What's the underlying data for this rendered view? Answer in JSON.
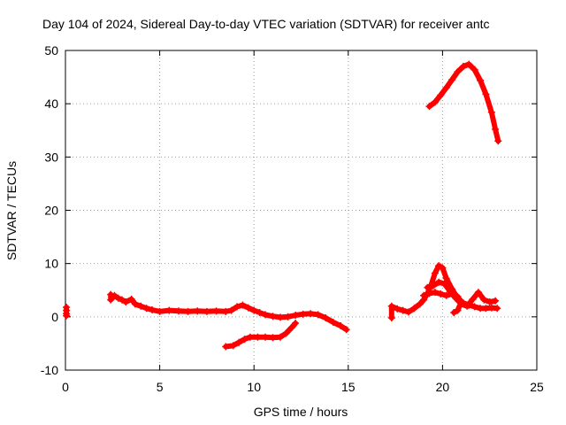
{
  "chart_data": {
    "type": "scatter",
    "title": "Day 104 of 2024, Sidereal Day-to-day VTEC variation (SDTVAR) for receiver antc",
    "xlabel": "GPS time / hours",
    "ylabel": "SDTVAR / TECUs",
    "xlim": [
      0,
      25
    ],
    "ylim": [
      -10,
      50
    ],
    "x_ticks": [
      0,
      5,
      10,
      15,
      20,
      25
    ],
    "y_ticks": [
      -10,
      0,
      10,
      20,
      30,
      40,
      50
    ],
    "x_tick_labels": [
      "0",
      "5",
      "10",
      "15",
      "20",
      "25"
    ],
    "y_tick_labels": [
      "-10",
      "0",
      "10",
      "20",
      "30",
      "40",
      "50"
    ],
    "grid": true,
    "marker": "plus",
    "color": "#ff0000",
    "series": [
      {
        "name": "trace-start",
        "points": [
          [
            0.05,
            1.8
          ],
          [
            0.05,
            1.2
          ],
          [
            0.05,
            0.6
          ],
          [
            0.05,
            0.2
          ]
        ]
      },
      {
        "name": "trace-morning",
        "points": [
          [
            2.4,
            4.2
          ],
          [
            2.4,
            3.2
          ],
          [
            2.6,
            4.0
          ],
          [
            2.8,
            3.5
          ],
          [
            3.0,
            3.2
          ],
          [
            3.2,
            2.8
          ],
          [
            3.5,
            3.3
          ],
          [
            3.7,
            2.4
          ],
          [
            4.0,
            2.0
          ],
          [
            4.3,
            1.6
          ],
          [
            4.6,
            1.3
          ],
          [
            5.0,
            1.0
          ],
          [
            5.5,
            1.2
          ],
          [
            6.0,
            1.1
          ],
          [
            6.5,
            1.0
          ],
          [
            7.0,
            1.1
          ],
          [
            7.5,
            1.0
          ],
          [
            8.0,
            1.1
          ],
          [
            8.5,
            1.0
          ],
          [
            8.8,
            1.2
          ],
          [
            9.1,
            1.9
          ],
          [
            9.4,
            2.2
          ],
          [
            9.7,
            1.7
          ],
          [
            10.0,
            1.2
          ],
          [
            10.3,
            0.8
          ],
          [
            10.6,
            0.4
          ],
          [
            11.0,
            0.1
          ],
          [
            11.4,
            -0.1
          ],
          [
            11.8,
            0.0
          ],
          [
            12.2,
            0.3
          ],
          [
            12.6,
            0.5
          ],
          [
            13.0,
            0.6
          ],
          [
            13.4,
            0.4
          ],
          [
            13.8,
            -0.2
          ],
          [
            14.2,
            -1.0
          ],
          [
            14.6,
            -1.7
          ],
          [
            14.9,
            -2.4
          ]
        ]
      },
      {
        "name": "trace-dip",
        "points": [
          [
            8.5,
            -5.6
          ],
          [
            8.9,
            -5.4
          ],
          [
            9.2,
            -4.8
          ],
          [
            9.5,
            -4.2
          ],
          [
            9.8,
            -3.8
          ],
          [
            10.2,
            -3.8
          ],
          [
            10.6,
            -3.8
          ],
          [
            11.0,
            -3.9
          ],
          [
            11.4,
            -3.8
          ],
          [
            11.7,
            -3.1
          ],
          [
            12.0,
            -2.0
          ],
          [
            12.2,
            -1.2
          ]
        ]
      },
      {
        "name": "trace-afternoon",
        "points": [
          [
            17.3,
            -0.2
          ],
          [
            17.3,
            2.0
          ],
          [
            17.6,
            1.5
          ],
          [
            17.9,
            1.2
          ],
          [
            18.2,
            0.9
          ],
          [
            18.5,
            1.6
          ],
          [
            18.8,
            2.4
          ],
          [
            19.0,
            3.2
          ],
          [
            19.2,
            4.4
          ],
          [
            19.4,
            6.0
          ],
          [
            19.6,
            8.2
          ],
          [
            19.8,
            9.6
          ],
          [
            20.0,
            9.2
          ],
          [
            20.2,
            7.2
          ],
          [
            20.5,
            5.2
          ],
          [
            20.8,
            3.5
          ],
          [
            21.1,
            2.6
          ],
          [
            21.4,
            2.2
          ],
          [
            21.7,
            1.9
          ],
          [
            22.0,
            1.6
          ],
          [
            22.3,
            1.6
          ],
          [
            22.6,
            1.7
          ],
          [
            22.9,
            1.6
          ]
        ]
      },
      {
        "name": "trace-afternoon-2",
        "points": [
          [
            19.2,
            5.5
          ],
          [
            19.5,
            5.8
          ],
          [
            19.8,
            6.5
          ],
          [
            20.1,
            6.2
          ],
          [
            20.4,
            4.8
          ],
          [
            20.7,
            3.5
          ],
          [
            21.0,
            2.4
          ],
          [
            21.3,
            2.0
          ],
          [
            21.6,
            3.3
          ],
          [
            21.9,
            4.6
          ],
          [
            22.2,
            3.2
          ],
          [
            22.5,
            2.8
          ],
          [
            22.8,
            3.0
          ]
        ]
      },
      {
        "name": "trace-afternoon-3",
        "points": [
          [
            19.0,
            4.0
          ],
          [
            19.3,
            4.4
          ],
          [
            19.6,
            4.6
          ],
          [
            19.9,
            4.3
          ],
          [
            20.2,
            4.0
          ],
          [
            20.5,
            4.3
          ],
          [
            20.8,
            3.8
          ],
          [
            21.0,
            2.8
          ],
          [
            20.8,
            1.2
          ],
          [
            20.6,
            0.8
          ]
        ]
      },
      {
        "name": "trace-peak",
        "points": [
          [
            19.3,
            39.5
          ],
          [
            19.6,
            40.3
          ],
          [
            19.9,
            41.6
          ],
          [
            20.2,
            43.0
          ],
          [
            20.5,
            44.5
          ],
          [
            20.8,
            46.0
          ],
          [
            21.1,
            47.0
          ],
          [
            21.4,
            47.4
          ],
          [
            21.7,
            46.4
          ],
          [
            22.0,
            44.4
          ],
          [
            22.3,
            41.8
          ],
          [
            22.6,
            38.4
          ],
          [
            22.8,
            35.2
          ],
          [
            22.95,
            33.0
          ]
        ]
      }
    ]
  }
}
